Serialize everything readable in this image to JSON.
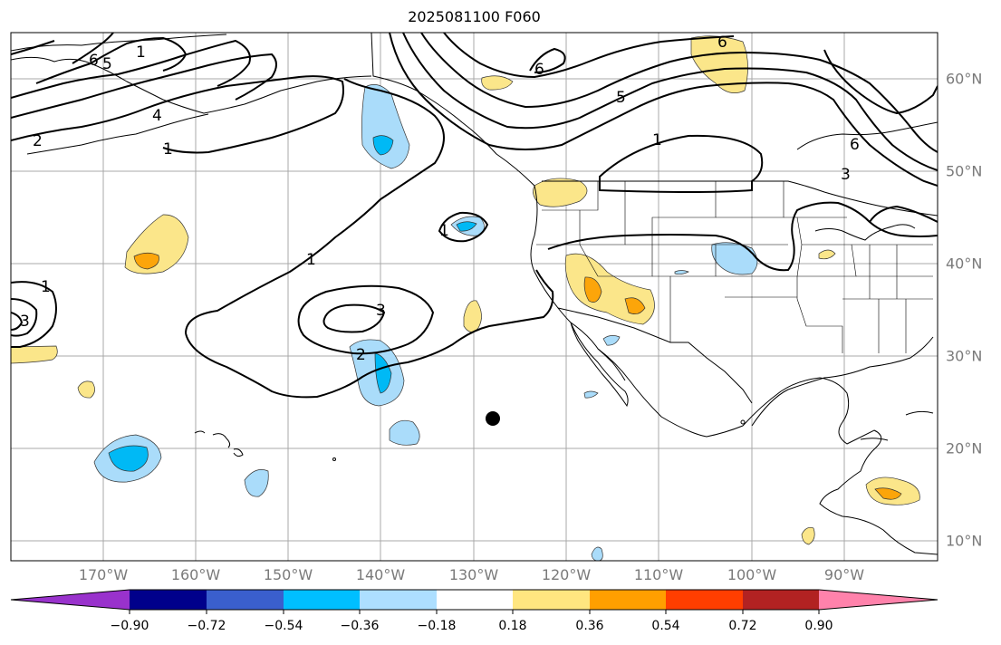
{
  "title": "2025081100 F060",
  "map": {
    "type": "forecast-map",
    "projection": "cylindrical",
    "lon_labels": [
      "170°W",
      "160°W",
      "150°W",
      "140°W",
      "130°W",
      "120°W",
      "110°W",
      "100°W",
      "90°W"
    ],
    "lat_labels": [
      "60°N",
      "50°N",
      "40°N",
      "30°N",
      "20°N",
      "10°N"
    ],
    "contour_labels": [
      "6",
      "5",
      "4",
      "2",
      "1",
      "1",
      "1",
      "3",
      "2",
      "1",
      "3",
      "6",
      "5",
      "1",
      "6",
      "3",
      "1",
      "6"
    ],
    "fill_colors": {
      "weak_negative": "#aadcfa",
      "negative": "#00b9f5",
      "weak_positive": "#fbe68a",
      "positive": "#fca50a"
    },
    "marker": "black-dot"
  },
  "colorbar": {
    "ticks": [
      "−0.90",
      "−0.72",
      "−0.54",
      "−0.36",
      "−0.18",
      "0.18",
      "0.36",
      "0.54",
      "0.72",
      "0.90"
    ],
    "colors": [
      "#9932cc",
      "#00008b",
      "#3a5fcd",
      "#00bfff",
      "#addfff",
      "#ffffff",
      "#ffe680",
      "#ff9f00",
      "#ff3e00",
      "#b22222",
      "#ff82ab"
    ]
  }
}
